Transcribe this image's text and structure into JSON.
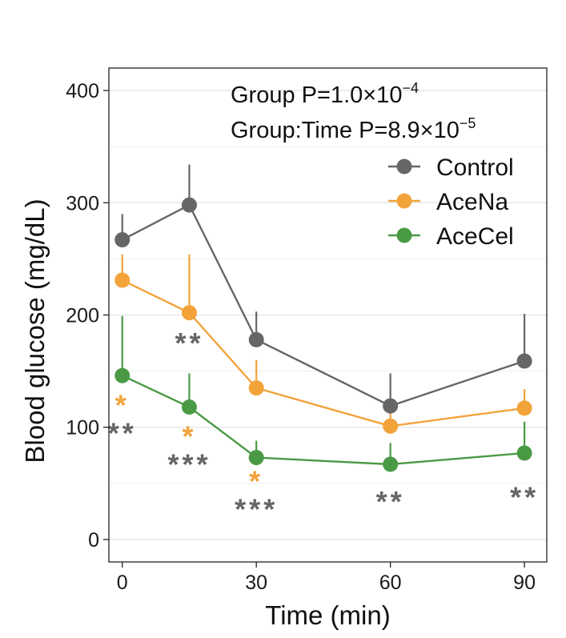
{
  "chart_data": {
    "type": "line",
    "xlabel": "Time (min)",
    "ylabel": "Blood glucose (mg/dL)",
    "xlim": [
      -3,
      95
    ],
    "ylim": [
      -20,
      420
    ],
    "x_ticks": [
      0,
      30,
      60,
      90
    ],
    "y_ticks": [
      0,
      100,
      200,
      300,
      400
    ],
    "grid": true,
    "legend_position": "top-right",
    "annotations": [
      {
        "base": "Group P=1.0×10",
        "exp": "−4"
      },
      {
        "base": "Group:Time P=8.9×10",
        "exp": "−5"
      }
    ],
    "x": [
      0,
      15,
      30,
      60,
      90
    ],
    "series": [
      {
        "name": "Control",
        "color": "#666666",
        "values": [
          267,
          298,
          178,
          119,
          159
        ],
        "error_upper": [
          290,
          334,
          203,
          148,
          201
        ]
      },
      {
        "name": "AceNa",
        "color": "#F2A33A",
        "values": [
          231,
          202,
          135,
          101,
          117
        ],
        "error_upper": [
          254,
          254,
          160,
          118,
          134
        ]
      },
      {
        "name": "AceCel",
        "color": "#4A9A45",
        "values": [
          146,
          118,
          73,
          67,
          77
        ],
        "error_upper": [
          199,
          148,
          88,
          86,
          105
        ]
      }
    ],
    "significance": [
      {
        "x": 0,
        "color": "#F2A33A",
        "label": "*",
        "y_level": 121
      },
      {
        "x": 0,
        "color": "#666666",
        "label": "**",
        "y_level": 96
      },
      {
        "x": 15,
        "color": "#666666",
        "label": "**",
        "y_level": 176
      },
      {
        "x": 15,
        "color": "#F2A33A",
        "label": "*",
        "y_level": 93
      },
      {
        "x": 15,
        "color": "#666666",
        "label": "***",
        "y_level": 68
      },
      {
        "x": 30,
        "color": "#F2A33A",
        "label": "*",
        "y_level": 53
      },
      {
        "x": 30,
        "color": "#666666",
        "label": "***",
        "y_level": 28
      },
      {
        "x": 60,
        "color": "#666666",
        "label": "**",
        "y_level": 35
      },
      {
        "x": 90,
        "color": "#666666",
        "label": "**",
        "y_level": 39
      }
    ]
  }
}
